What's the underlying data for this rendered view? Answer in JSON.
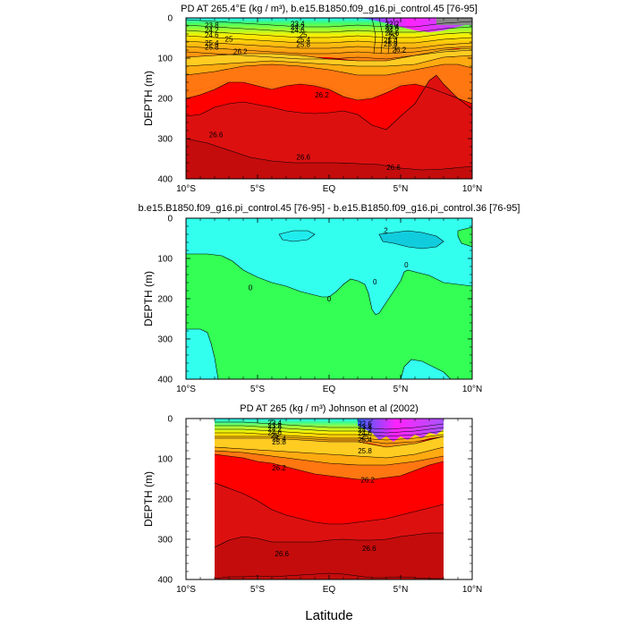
{
  "figure": {
    "xlabel": "Latitude"
  },
  "chart_data": [
    {
      "type": "contour",
      "title": "PD AT 265.4°E (kg / m³), b.e15.B1850.f09_g16.pi_control.45 [76-95]",
      "ylabel": "DEPTH (m)",
      "xlim": [
        -10,
        10
      ],
      "ylim": [
        400,
        0
      ],
      "xticks": [
        "10°S",
        "5°S",
        "EQ",
        "5°N",
        "10°N"
      ],
      "yticks": [
        "0",
        "100",
        "200",
        "300",
        "400"
      ],
      "data_extent": [
        -10,
        10
      ],
      "contour_labels": [
        {
          "x": -8.2,
          "y": 18,
          "text": "23.8"
        },
        {
          "x": -8.2,
          "y": 30,
          "text": "24.2"
        },
        {
          "x": -8.2,
          "y": 42,
          "text": "24.6"
        },
        {
          "x": -7.0,
          "y": 52,
          "text": "25"
        },
        {
          "x": -8.2,
          "y": 62,
          "text": "25.4"
        },
        {
          "x": -8.2,
          "y": 72,
          "text": "25.8"
        },
        {
          "x": -6.2,
          "y": 83,
          "text": "26.2"
        },
        {
          "x": -2.2,
          "y": 14,
          "text": "23.4"
        },
        {
          "x": -2.2,
          "y": 22,
          "text": "24.2"
        },
        {
          "x": -2.2,
          "y": 30,
          "text": "24.6"
        },
        {
          "x": -1.8,
          "y": 41,
          "text": "25"
        },
        {
          "x": -1.8,
          "y": 53,
          "text": "25.4"
        },
        {
          "x": -1.8,
          "y": 65,
          "text": "25.8"
        },
        {
          "x": 4.4,
          "y": 14,
          "text": "22.2"
        },
        {
          "x": 4.4,
          "y": 22,
          "text": "23.4"
        },
        {
          "x": 4.4,
          "y": 30,
          "text": "24.2"
        },
        {
          "x": 4.4,
          "y": 38,
          "text": "24.6"
        },
        {
          "x": 4.4,
          "y": 46,
          "text": "25"
        },
        {
          "x": 4.3,
          "y": 55,
          "text": "25.4"
        },
        {
          "x": 4.3,
          "y": 64,
          "text": "25.8"
        },
        {
          "x": -0.5,
          "y": 191,
          "text": "26.2"
        },
        {
          "x": 4.9,
          "y": 79,
          "text": "26.2"
        },
        {
          "x": -7.9,
          "y": 290,
          "text": "26.6"
        },
        {
          "x": -1.8,
          "y": 346,
          "text": "26.6"
        },
        {
          "x": 4.5,
          "y": 371,
          "text": "26.6"
        }
      ],
      "isopycnals_depth_m": [
        {
          "level": "23.4",
          "x": [
            -10,
            -6,
            -3,
            0,
            2,
            4,
            6,
            8,
            10
          ],
          "y": [
            5,
            6,
            8,
            10,
            10,
            10,
            5,
            3,
            2
          ]
        },
        {
          "level": "24.2",
          "x": [
            -10,
            -6,
            -3,
            0,
            2,
            4,
            6,
            8,
            10
          ],
          "y": [
            12,
            15,
            18,
            20,
            20,
            18,
            12,
            8,
            6
          ]
        },
        {
          "level": "25",
          "x": [
            -10,
            -6,
            -3,
            0,
            2,
            4,
            6,
            8,
            10
          ],
          "y": [
            25,
            32,
            38,
            40,
            40,
            36,
            26,
            20,
            18
          ]
        },
        {
          "level": "25.8",
          "x": [
            -10,
            -6,
            -3,
            0,
            2,
            4,
            6,
            8,
            10
          ],
          "y": [
            55,
            60,
            65,
            66,
            64,
            58,
            50,
            44,
            40
          ]
        },
        {
          "level": "26.2",
          "x": [
            -10,
            -8,
            -6,
            -4,
            -2,
            0,
            2,
            4,
            6,
            8,
            10
          ],
          "y": [
            98,
            85,
            78,
            82,
            95,
            112,
            100,
            80,
            70,
            72,
            80
          ]
        },
        {
          "level": "26.4",
          "x": [
            -10,
            -8,
            -6,
            -4,
            -2,
            0,
            2,
            4,
            6,
            7,
            8,
            10
          ],
          "y": [
            200,
            185,
            165,
            170,
            185,
            190,
            170,
            240,
            225,
            170,
            185,
            225
          ]
        },
        {
          "level": "26.6",
          "x": [
            -10,
            -8,
            -6,
            -4,
            -2,
            0,
            2,
            4,
            6,
            8,
            10
          ],
          "y": [
            300,
            315,
            330,
            345,
            348,
            350,
            355,
            372,
            380,
            378,
            365
          ]
        }
      ]
    },
    {
      "type": "contour",
      "title": "b.e15.B1850.f09_g16.pi_control.45 [76-95] - b.e15.B1850.f09_g16.pi_control.36 [76-95]",
      "ylabel": "DEPTH (m)",
      "xlim": [
        -10,
        10
      ],
      "ylim": [
        400,
        0
      ],
      "xticks": [
        "10°S",
        "5°S",
        "EQ",
        "5°N",
        "10°N"
      ],
      "yticks": [
        "0",
        "100",
        "200",
        "300",
        "400"
      ],
      "data_extent": [
        -10,
        10
      ],
      "contour_labels": [
        {
          "x": 3.9,
          "y": 30,
          "text": ".2"
        },
        {
          "x": -5.5,
          "y": 172,
          "text": "0"
        },
        {
          "x": 0.0,
          "y": 200,
          "text": "0"
        },
        {
          "x": 3.2,
          "y": 158,
          "text": "0"
        },
        {
          "x": 5.4,
          "y": 115,
          "text": "0"
        }
      ],
      "colors": {
        "negative_band": "#33ff55",
        "zero_to_0_2": "#33ffee",
        "above_0_2": "#11ddee"
      }
    },
    {
      "type": "contour",
      "title": "PD AT 265 (kg / m³) Johnson et al (2002)",
      "ylabel": "DEPTH (m)",
      "xlim": [
        -10,
        10
      ],
      "ylim": [
        400,
        0
      ],
      "xticks": [
        "10°S",
        "5°S",
        "EQ",
        "5°N",
        "10°N"
      ],
      "yticks": [
        "0",
        "100",
        "200",
        "300",
        "400"
      ],
      "data_extent": [
        -8,
        8
      ],
      "contour_labels": [
        {
          "x": -3.8,
          "y": 10,
          "text": "23.4"
        },
        {
          "x": -3.8,
          "y": 18,
          "text": "23.8"
        },
        {
          "x": -3.8,
          "y": 26,
          "text": "24.2"
        },
        {
          "x": -3.8,
          "y": 34,
          "text": "24.6"
        },
        {
          "x": -3.8,
          "y": 42,
          "text": "25"
        },
        {
          "x": -3.5,
          "y": 50,
          "text": "25.4"
        },
        {
          "x": -3.5,
          "y": 58,
          "text": "25.8"
        },
        {
          "x": -3.5,
          "y": 122,
          "text": "26.2"
        },
        {
          "x": 2.5,
          "y": 12,
          "text": "22.6"
        },
        {
          "x": 2.5,
          "y": 20,
          "text": "23.8"
        },
        {
          "x": 2.5,
          "y": 28,
          "text": "24.2"
        },
        {
          "x": 2.5,
          "y": 36,
          "text": "24.6"
        },
        {
          "x": 2.5,
          "y": 44,
          "text": "25"
        },
        {
          "x": 2.5,
          "y": 52,
          "text": "25.4"
        },
        {
          "x": 2.5,
          "y": 80,
          "text": "25.8"
        },
        {
          "x": 2.7,
          "y": 152,
          "text": "26.2"
        },
        {
          "x": -3.3,
          "y": 335,
          "text": "26.6"
        },
        {
          "x": 2.8,
          "y": 322,
          "text": "26.6"
        }
      ],
      "isopycnals_depth_m": [
        {
          "level": "23.4",
          "x": [
            -8,
            -4,
            0,
            2,
            4,
            6,
            8
          ],
          "y": [
            4,
            5,
            6,
            8,
            10,
            6,
            4
          ]
        },
        {
          "level": "24.2",
          "x": [
            -8,
            -4,
            0,
            2,
            4,
            6,
            8
          ],
          "y": [
            14,
            16,
            20,
            22,
            22,
            14,
            10
          ]
        },
        {
          "level": "25",
          "x": [
            -8,
            -4,
            0,
            2,
            4,
            6,
            8
          ],
          "y": [
            28,
            32,
            38,
            40,
            38,
            26,
            20
          ]
        },
        {
          "level": "25.8",
          "x": [
            -8,
            -4,
            0,
            2,
            4,
            6,
            8
          ],
          "y": [
            48,
            54,
            62,
            64,
            60,
            46,
            40
          ]
        },
        {
          "level": "26.2",
          "x": [
            -8,
            -6,
            -4,
            -2,
            0,
            2,
            4,
            6,
            8
          ],
          "y": [
            70,
            90,
            110,
            135,
            150,
            155,
            145,
            118,
            100
          ]
        },
        {
          "level": "26.4",
          "x": [
            -8,
            -6,
            -4,
            -2,
            0,
            2,
            4,
            6,
            8
          ],
          "y": [
            190,
            170,
            190,
            220,
            250,
            265,
            260,
            245,
            225
          ]
        },
        {
          "level": "26.6",
          "x": [
            -8,
            -6,
            -4,
            -2,
            0,
            2,
            4,
            6,
            8
          ],
          "y": [
            335,
            300,
            310,
            320,
            320,
            315,
            318,
            305,
            300
          ]
        },
        {
          "level": "26.8",
          "x": [
            -8,
            -6,
            -4,
            -2,
            0,
            2,
            4,
            6,
            8
          ],
          "y": [
            398,
            392,
            394,
            392,
            388,
            385,
            390,
            395,
            398
          ]
        }
      ]
    }
  ]
}
